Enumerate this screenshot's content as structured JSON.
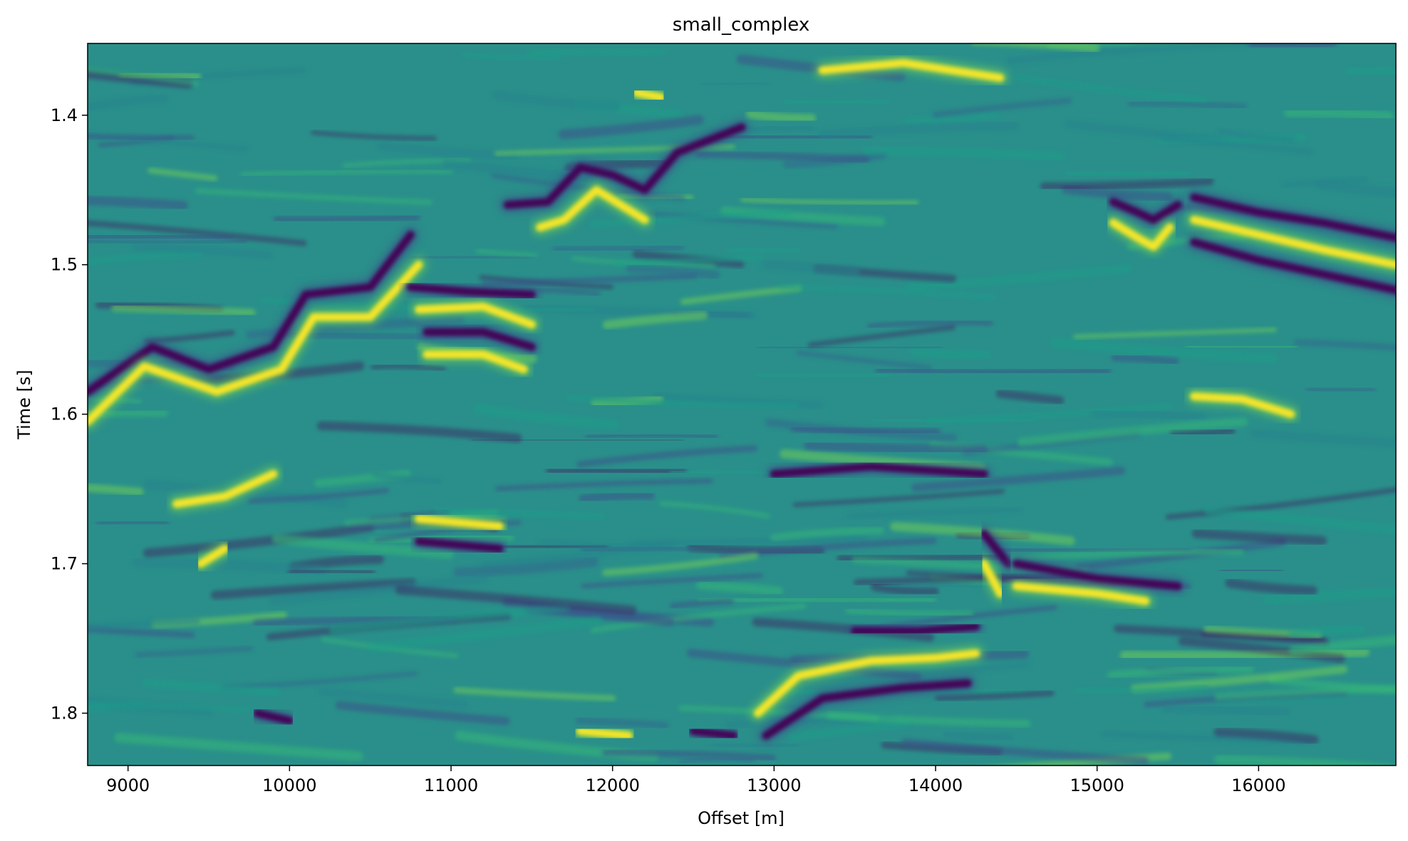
{
  "chart_data": {
    "type": "heatmap",
    "title": "small_complex",
    "xlabel": "Offset [m]",
    "ylabel": "Time [s]",
    "xlim": [
      8750,
      16850
    ],
    "ylim": [
      1.835,
      1.352
    ],
    "y_inverted": true,
    "colormap": "viridis",
    "colorbar": false,
    "grid": false,
    "x_ticks": [
      9000,
      10000,
      11000,
      12000,
      13000,
      14000,
      15000,
      16000
    ],
    "y_ticks": [
      1.4,
      1.5,
      1.6,
      1.7,
      1.8
    ],
    "y_tick_labels": [
      "1.4",
      "1.5",
      "1.6",
      "1.7",
      "1.8"
    ],
    "events": [
      {
        "polarity": -1,
        "points": [
          [
            8750,
            1.585
          ],
          [
            9150,
            1.555
          ],
          [
            9500,
            1.57
          ],
          [
            9900,
            1.555
          ],
          [
            10100,
            1.52
          ],
          [
            10500,
            1.515
          ],
          [
            10750,
            1.48
          ]
        ]
      },
      {
        "polarity": 1,
        "points": [
          [
            8750,
            1.605
          ],
          [
            9100,
            1.568
          ],
          [
            9550,
            1.585
          ],
          [
            9950,
            1.57
          ],
          [
            10150,
            1.535
          ],
          [
            10500,
            1.535
          ],
          [
            10800,
            1.5
          ]
        ]
      },
      {
        "polarity": -1,
        "points": [
          [
            10750,
            1.515
          ],
          [
            11100,
            1.518
          ],
          [
            11500,
            1.52
          ]
        ]
      },
      {
        "polarity": 1,
        "points": [
          [
            10800,
            1.53
          ],
          [
            11200,
            1.528
          ],
          [
            11500,
            1.54
          ]
        ]
      },
      {
        "polarity": -1,
        "points": [
          [
            10850,
            1.545
          ],
          [
            11200,
            1.545
          ],
          [
            11500,
            1.555
          ]
        ]
      },
      {
        "polarity": 1,
        "points": [
          [
            10850,
            1.56
          ],
          [
            11200,
            1.56
          ],
          [
            11450,
            1.57
          ]
        ]
      },
      {
        "polarity": -1,
        "points": [
          [
            11350,
            1.46
          ],
          [
            11600,
            1.458
          ],
          [
            11800,
            1.435
          ],
          [
            12000,
            1.44
          ],
          [
            12200,
            1.45
          ],
          [
            12400,
            1.425
          ],
          [
            12800,
            1.408
          ]
        ]
      },
      {
        "polarity": 1,
        "points": [
          [
            11550,
            1.475
          ],
          [
            11700,
            1.47
          ],
          [
            11900,
            1.45
          ],
          [
            12200,
            1.47
          ]
        ]
      },
      {
        "polarity": 1,
        "points": [
          [
            12150,
            1.385
          ],
          [
            12300,
            1.388
          ]
        ]
      },
      {
        "polarity": -1,
        "points": [
          [
            13500,
            1.745
          ],
          [
            13900,
            1.745
          ],
          [
            14250,
            1.742
          ]
        ]
      },
      {
        "polarity": 1,
        "points": [
          [
            12900,
            1.8
          ],
          [
            13150,
            1.775
          ],
          [
            13600,
            1.765
          ],
          [
            14000,
            1.763
          ],
          [
            14250,
            1.76
          ]
        ]
      },
      {
        "polarity": -1,
        "points": [
          [
            12950,
            1.815
          ],
          [
            13300,
            1.79
          ],
          [
            13800,
            1.783
          ],
          [
            14200,
            1.78
          ]
        ]
      },
      {
        "polarity": 1,
        "points": [
          [
            14300,
            1.7
          ],
          [
            14400,
            1.72
          ]
        ]
      },
      {
        "polarity": -1,
        "points": [
          [
            14300,
            1.68
          ],
          [
            14450,
            1.7
          ]
        ]
      },
      {
        "polarity": -1,
        "points": [
          [
            15100,
            1.458
          ],
          [
            15250,
            1.465
          ],
          [
            15350,
            1.47
          ],
          [
            15500,
            1.46
          ]
        ]
      },
      {
        "polarity": 1,
        "points": [
          [
            15100,
            1.472
          ],
          [
            15250,
            1.482
          ],
          [
            15350,
            1.488
          ],
          [
            15450,
            1.475
          ]
        ]
      },
      {
        "polarity": -1,
        "points": [
          [
            15600,
            1.455
          ],
          [
            16000,
            1.465
          ],
          [
            16400,
            1.472
          ],
          [
            16850,
            1.482
          ]
        ]
      },
      {
        "polarity": 1,
        "points": [
          [
            15600,
            1.47
          ],
          [
            16000,
            1.48
          ],
          [
            16400,
            1.49
          ],
          [
            16850,
            1.5
          ]
        ]
      },
      {
        "polarity": -1,
        "points": [
          [
            15600,
            1.485
          ],
          [
            16000,
            1.497
          ],
          [
            16850,
            1.517
          ]
        ]
      },
      {
        "polarity": 1,
        "points": [
          [
            15600,
            1.588
          ],
          [
            15900,
            1.59
          ],
          [
            16200,
            1.6
          ]
        ]
      },
      {
        "polarity": 1,
        "points": [
          [
            15650,
            1.617
          ],
          [
            15900,
            1.617
          ]
        ]
      },
      {
        "polarity": -1,
        "points": [
          [
            14500,
            1.7
          ],
          [
            15000,
            1.71
          ],
          [
            15500,
            1.715
          ]
        ]
      },
      {
        "polarity": 1,
        "points": [
          [
            14500,
            1.715
          ],
          [
            15000,
            1.72
          ],
          [
            15300,
            1.725
          ]
        ]
      },
      {
        "polarity": -1,
        "points": [
          [
            12500,
            1.812
          ],
          [
            12750,
            1.815
          ]
        ]
      },
      {
        "polarity": 1,
        "points": [
          [
            11800,
            1.812
          ],
          [
            12100,
            1.815
          ]
        ]
      },
      {
        "polarity": -1,
        "points": [
          [
            9800,
            1.8
          ],
          [
            10000,
            1.805
          ]
        ]
      },
      {
        "polarity": 1,
        "points": [
          [
            9300,
            1.66
          ],
          [
            9600,
            1.655
          ],
          [
            9900,
            1.64
          ]
        ]
      },
      {
        "polarity": 1,
        "points": [
          [
            9450,
            1.7
          ],
          [
            9600,
            1.69
          ]
        ]
      },
      {
        "polarity": 1,
        "points": [
          [
            10800,
            1.67
          ],
          [
            11300,
            1.675
          ]
        ]
      },
      {
        "polarity": -1,
        "points": [
          [
            10800,
            1.685
          ],
          [
            11300,
            1.69
          ]
        ]
      },
      {
        "polarity": -1,
        "points": [
          [
            13000,
            1.64
          ],
          [
            13600,
            1.635
          ],
          [
            14300,
            1.64
          ]
        ]
      },
      {
        "polarity": 1,
        "points": [
          [
            13300,
            1.37
          ],
          [
            13800,
            1.365
          ],
          [
            14400,
            1.375
          ]
        ]
      }
    ]
  }
}
